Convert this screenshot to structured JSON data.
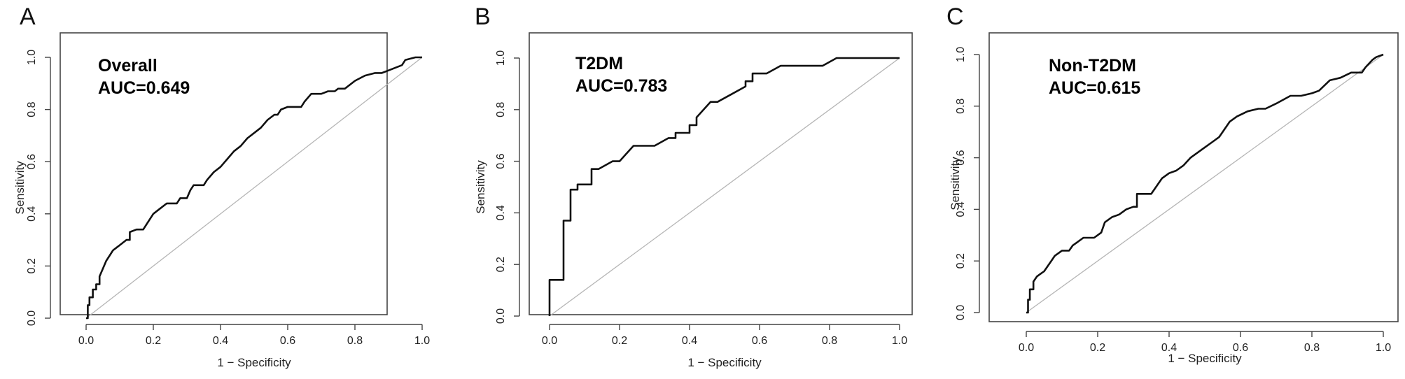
{
  "chart_data": [
    {
      "type": "line",
      "panel_label": "A",
      "annotation_line1": "Overall",
      "annotation_line2": "AUC=0.649",
      "xlabel": "1 − Specificity",
      "ylabel": "Sensitivity",
      "xlim": [
        0,
        1
      ],
      "ylim": [
        0,
        1
      ],
      "xticks": [
        "0.0",
        "0.2",
        "0.4",
        "0.6",
        "0.8",
        "1.0"
      ],
      "yticks": [
        "0.0",
        "0.2",
        "0.4",
        "0.6",
        "0.8",
        "1.0"
      ],
      "grid": false,
      "reference_line": true,
      "series": [
        {
          "x": [
            0,
            0.005,
            0.005,
            0.01,
            0.01,
            0.02,
            0.02,
            0.03,
            0.03,
            0.04,
            0.04,
            0.05,
            0.06,
            0.07,
            0.08,
            0.09,
            0.1,
            0.12,
            0.13,
            0.13,
            0.15,
            0.17,
            0.18,
            0.2,
            0.22,
            0.24,
            0.27,
            0.28,
            0.3,
            0.31,
            0.32,
            0.33,
            0.35,
            0.36,
            0.38,
            0.4,
            0.42,
            0.44,
            0.46,
            0.48,
            0.5,
            0.52,
            0.54,
            0.56,
            0.57,
            0.58,
            0.6,
            0.64,
            0.65,
            0.67,
            0.7,
            0.72,
            0.74,
            0.75,
            0.77,
            0.8,
            0.83,
            0.86,
            0.88,
            0.9,
            0.92,
            0.94,
            0.95,
            0.98,
            1.0
          ],
          "y": [
            0,
            0,
            0.05,
            0.05,
            0.08,
            0.08,
            0.11,
            0.11,
            0.13,
            0.13,
            0.16,
            0.19,
            0.22,
            0.24,
            0.26,
            0.27,
            0.28,
            0.3,
            0.3,
            0.33,
            0.34,
            0.34,
            0.36,
            0.4,
            0.42,
            0.44,
            0.44,
            0.46,
            0.46,
            0.49,
            0.51,
            0.51,
            0.51,
            0.53,
            0.56,
            0.58,
            0.61,
            0.64,
            0.66,
            0.69,
            0.71,
            0.73,
            0.76,
            0.78,
            0.78,
            0.8,
            0.81,
            0.81,
            0.83,
            0.86,
            0.86,
            0.87,
            0.87,
            0.88,
            0.88,
            0.91,
            0.93,
            0.94,
            0.94,
            0.95,
            0.96,
            0.97,
            0.99,
            1.0,
            1.0
          ]
        }
      ]
    },
    {
      "type": "line",
      "panel_label": "B",
      "annotation_line1": "T2DM",
      "annotation_line2": "AUC=0.783",
      "xlabel": "1 − Specificity",
      "ylabel": "Sensitivity",
      "xlim": [
        0,
        1
      ],
      "ylim": [
        0,
        1
      ],
      "xticks": [
        "0.0",
        "0.2",
        "0.4",
        "0.6",
        "0.8",
        "1.0"
      ],
      "yticks": [
        "0.0",
        "0.2",
        "0.4",
        "0.6",
        "0.8",
        "1.0"
      ],
      "grid": false,
      "reference_line": true,
      "series": [
        {
          "x": [
            0,
            0,
            0.04,
            0.04,
            0.06,
            0.06,
            0.08,
            0.08,
            0.12,
            0.12,
            0.14,
            0.18,
            0.2,
            0.22,
            0.24,
            0.3,
            0.34,
            0.36,
            0.36,
            0.4,
            0.4,
            0.42,
            0.42,
            0.46,
            0.48,
            0.52,
            0.56,
            0.56,
            0.58,
            0.58,
            0.62,
            0.66,
            0.7,
            0.74,
            0.78,
            0.82,
            0.84,
            0.88,
            0.92,
            0.96,
            1.0
          ],
          "y": [
            0,
            0.14,
            0.14,
            0.37,
            0.37,
            0.49,
            0.49,
            0.51,
            0.51,
            0.57,
            0.57,
            0.6,
            0.6,
            0.63,
            0.66,
            0.66,
            0.69,
            0.69,
            0.71,
            0.71,
            0.74,
            0.74,
            0.77,
            0.83,
            0.83,
            0.86,
            0.89,
            0.91,
            0.91,
            0.94,
            0.94,
            0.97,
            0.97,
            0.97,
            0.97,
            1.0,
            1.0,
            1.0,
            1.0,
            1.0,
            1.0
          ]
        }
      ]
    },
    {
      "type": "line",
      "panel_label": "C",
      "annotation_line1": "Non-T2DM",
      "annotation_line2": "AUC=0.615",
      "xlabel": "1 − Specificity",
      "ylabel": "Sensitivity",
      "xlim": [
        0,
        1
      ],
      "ylim": [
        0,
        1
      ],
      "xticks": [
        "0.0",
        "0.2",
        "0.4",
        "0.6",
        "0.8",
        "1.0"
      ],
      "yticks": [
        "0.0",
        "0.2",
        "0.4",
        "0.6",
        "0.8",
        "1.0"
      ],
      "grid": false,
      "reference_line": true,
      "series": [
        {
          "x": [
            0,
            0.005,
            0.005,
            0.01,
            0.01,
            0.02,
            0.02,
            0.03,
            0.04,
            0.05,
            0.06,
            0.07,
            0.08,
            0.1,
            0.12,
            0.13,
            0.14,
            0.16,
            0.19,
            0.2,
            0.21,
            0.22,
            0.24,
            0.26,
            0.28,
            0.3,
            0.31,
            0.31,
            0.33,
            0.35,
            0.37,
            0.38,
            0.4,
            0.42,
            0.44,
            0.46,
            0.48,
            0.5,
            0.52,
            0.54,
            0.55,
            0.57,
            0.59,
            0.62,
            0.65,
            0.67,
            0.7,
            0.74,
            0.77,
            0.8,
            0.82,
            0.85,
            0.88,
            0.91,
            0.94,
            0.95,
            0.97,
            0.98,
            1.0
          ],
          "y": [
            0,
            0,
            0.05,
            0.05,
            0.09,
            0.09,
            0.12,
            0.14,
            0.15,
            0.16,
            0.18,
            0.2,
            0.22,
            0.24,
            0.24,
            0.26,
            0.27,
            0.29,
            0.29,
            0.3,
            0.31,
            0.35,
            0.37,
            0.38,
            0.4,
            0.41,
            0.41,
            0.46,
            0.46,
            0.46,
            0.5,
            0.52,
            0.54,
            0.55,
            0.57,
            0.6,
            0.62,
            0.64,
            0.66,
            0.68,
            0.7,
            0.74,
            0.76,
            0.78,
            0.79,
            0.79,
            0.81,
            0.84,
            0.84,
            0.85,
            0.86,
            0.9,
            0.91,
            0.93,
            0.93,
            0.95,
            0.98,
            0.99,
            1.0
          ]
        }
      ]
    }
  ]
}
